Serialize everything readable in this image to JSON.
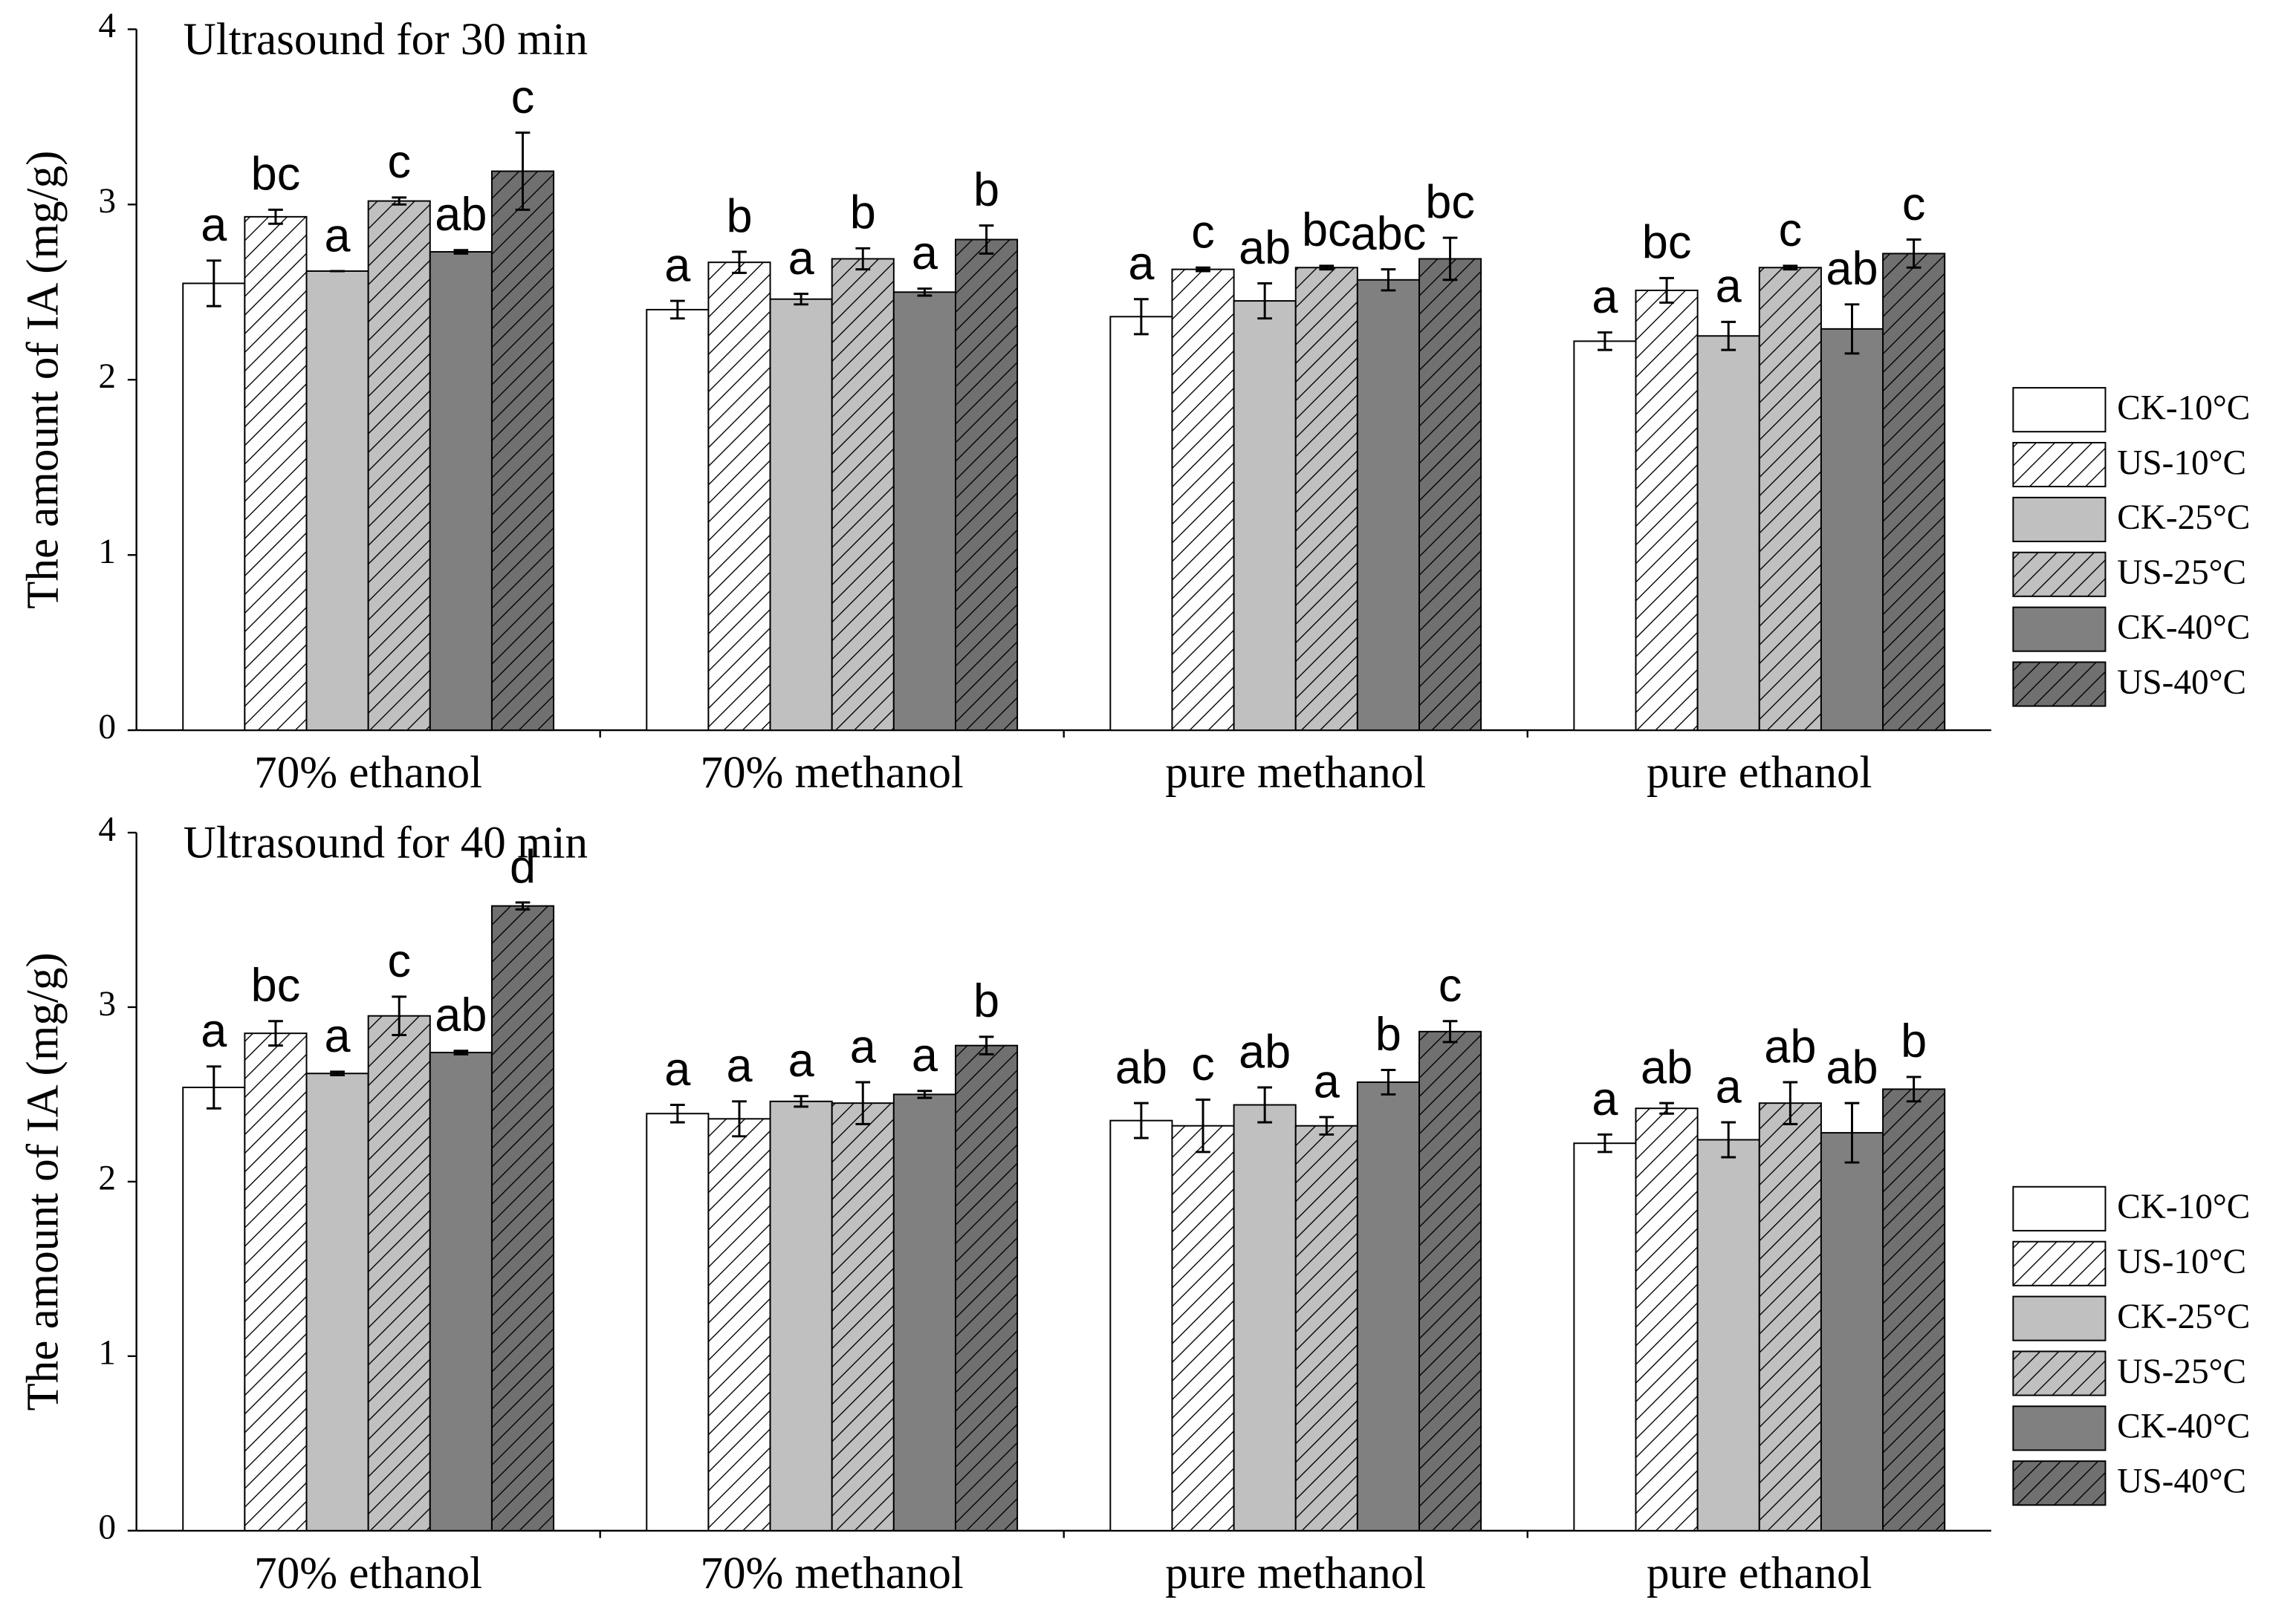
{
  "chart_data": [
    {
      "type": "bar",
      "title": "Ultrasound for 30 min",
      "ylabel": "The amount of IA (mg/g)",
      "categories": [
        "70% ethanol",
        "70% methanol",
        "pure methanol",
        "pure ethanol"
      ],
      "ylim": [
        0,
        4
      ],
      "yticks": [
        0,
        1,
        2,
        3,
        4
      ],
      "series": [
        {
          "name": "CK-10°C",
          "color": "#ffffff",
          "hatch": false,
          "values": [
            2.55,
            2.4,
            2.36,
            2.22
          ],
          "errors": [
            0.13,
            0.05,
            0.1,
            0.05
          ],
          "annotations": [
            "a",
            "a",
            "a",
            "a"
          ]
        },
        {
          "name": "US-10°C",
          "color": "#ffffff",
          "hatch": true,
          "values": [
            2.93,
            2.67,
            2.63,
            2.51
          ],
          "errors": [
            0.04,
            0.06,
            0.01,
            0.07
          ],
          "annotations": [
            "bc",
            "b",
            "c",
            "bc"
          ]
        },
        {
          "name": "CK-25°C",
          "color": "#c0c0c0",
          "hatch": false,
          "values": [
            2.62,
            2.46,
            2.45,
            2.25
          ],
          "errors": [
            0,
            0.03,
            0.1,
            0.08
          ],
          "annotations": [
            "a",
            "a",
            "ab",
            "a"
          ]
        },
        {
          "name": "US-25°C",
          "color": "#c0c0c0",
          "hatch": true,
          "values": [
            3.02,
            2.69,
            2.64,
            2.64
          ],
          "errors": [
            0.02,
            0.06,
            0.01,
            0.01
          ],
          "annotations": [
            "c",
            "b",
            "bc",
            "c"
          ]
        },
        {
          "name": "CK-40°C",
          "color": "#808080",
          "hatch": false,
          "values": [
            2.73,
            2.5,
            2.57,
            2.29
          ],
          "errors": [
            0.01,
            0.02,
            0.06,
            0.14
          ],
          "annotations": [
            "ab",
            "a",
            "abc",
            "ab"
          ]
        },
        {
          "name": "US-40°C",
          "color": "#707070",
          "hatch": true,
          "values": [
            3.19,
            2.8,
            2.69,
            2.72
          ],
          "errors": [
            0.22,
            0.08,
            0.12,
            0.08
          ],
          "annotations": [
            "c",
            "b",
            "bc",
            "c"
          ]
        }
      ]
    },
    {
      "type": "bar",
      "title": "Ultrasound for 40 min",
      "ylabel": "The amount of IA (mg/g)",
      "categories": [
        "70% ethanol",
        "70% methanol",
        "pure methanol",
        "pure ethanol"
      ],
      "ylim": [
        0,
        4
      ],
      "yticks": [
        0,
        1,
        2,
        3,
        4
      ],
      "series": [
        {
          "name": "CK-10°C",
          "color": "#ffffff",
          "hatch": false,
          "values": [
            2.54,
            2.39,
            2.35,
            2.22
          ],
          "errors": [
            0.12,
            0.05,
            0.1,
            0.05
          ],
          "annotations": [
            "a",
            "a",
            "ab",
            "a"
          ]
        },
        {
          "name": "US-10°C",
          "color": "#ffffff",
          "hatch": true,
          "values": [
            2.85,
            2.36,
            2.32,
            2.42
          ],
          "errors": [
            0.07,
            0.1,
            0.15,
            0.03
          ],
          "annotations": [
            "bc",
            "a",
            "c",
            "ab"
          ]
        },
        {
          "name": "CK-25°C",
          "color": "#c0c0c0",
          "hatch": false,
          "values": [
            2.62,
            2.46,
            2.44,
            2.24
          ],
          "errors": [
            0.01,
            0.03,
            0.1,
            0.1
          ],
          "annotations": [
            "a",
            "a",
            "ab",
            "a"
          ]
        },
        {
          "name": "US-25°C",
          "color": "#c0c0c0",
          "hatch": true,
          "values": [
            2.95,
            2.45,
            2.32,
            2.45
          ],
          "errors": [
            0.11,
            0.12,
            0.05,
            0.12
          ],
          "annotations": [
            "c",
            "a",
            "a",
            "ab"
          ]
        },
        {
          "name": "CK-40°C",
          "color": "#808080",
          "hatch": false,
          "values": [
            2.74,
            2.5,
            2.57,
            2.28
          ],
          "errors": [
            0.01,
            0.02,
            0.07,
            0.17
          ],
          "annotations": [
            "ab",
            "a",
            "b",
            "ab"
          ]
        },
        {
          "name": "US-40°C",
          "color": "#707070",
          "hatch": true,
          "values": [
            3.58,
            2.78,
            2.86,
            2.53
          ],
          "errors": [
            0.02,
            0.05,
            0.06,
            0.07
          ],
          "annotations": [
            "d",
            "b",
            "c",
            "b"
          ]
        }
      ]
    }
  ]
}
